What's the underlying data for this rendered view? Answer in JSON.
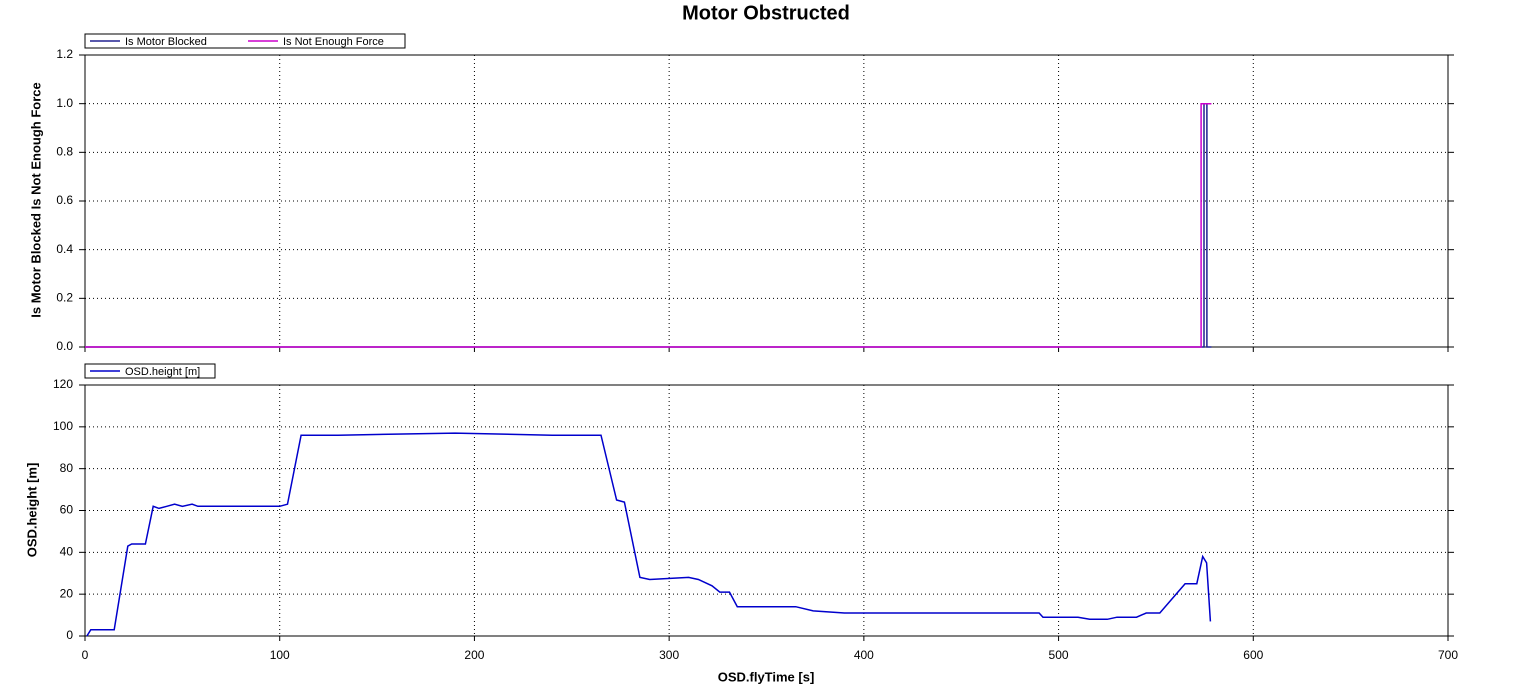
{
  "chart_data": [
    {
      "type": "line",
      "title": "Motor Obstructed",
      "ylabel": "Is Motor Blocked Is Not Enough Force",
      "ylim": [
        0,
        1.2
      ],
      "yticks": [
        {
          "value": 0,
          "label": "0.0"
        },
        {
          "value": 0.2,
          "label": "0.2"
        },
        {
          "value": 0.4,
          "label": "0.4"
        },
        {
          "value": 0.6,
          "label": "0.6"
        },
        {
          "value": 0.8,
          "label": "0.8"
        },
        {
          "value": 1,
          "label": "1.0"
        },
        {
          "value": 1.2,
          "label": "1.2"
        }
      ],
      "grid": true,
      "series": [
        {
          "name": "Is Motor Blocked",
          "color": "#202090",
          "x": [
            0,
            574.7,
            574.7,
            576.2,
            576.2,
            578.5
          ],
          "values": [
            0,
            0,
            1,
            1,
            0,
            0
          ]
        },
        {
          "name": "Is Not Enough Force",
          "color": "#cc00cc",
          "x": [
            0,
            573.2,
            573.2,
            578.5
          ],
          "values": [
            0,
            0,
            1,
            1
          ]
        }
      ]
    },
    {
      "type": "line",
      "xlabel": "OSD.flyTime [s]",
      "ylabel": "OSD.height [m]",
      "xlim": [
        0,
        700
      ],
      "xticks": [
        0,
        100,
        200,
        300,
        400,
        500,
        600,
        700
      ],
      "ylim": [
        0,
        120
      ],
      "yticks": [
        0,
        20,
        40,
        60,
        80,
        100,
        120
      ],
      "grid": true,
      "series": [
        {
          "name": "OSD.height [m]",
          "color": "#0000cc",
          "x": [
            1,
            3,
            15,
            22,
            24,
            31,
            35,
            38,
            42,
            46,
            50,
            55,
            58,
            65,
            90,
            100,
            104,
            111,
            130,
            190,
            240,
            265,
            273,
            277,
            285,
            290,
            310,
            315,
            322,
            326,
            331,
            335,
            365,
            374,
            390,
            490,
            492,
            510,
            516,
            525,
            530,
            540,
            545,
            552,
            565,
            571,
            574,
            576,
            578
          ],
          "values": [
            0,
            3,
            3,
            43,
            44,
            44,
            62,
            61,
            62,
            63,
            62,
            63,
            62,
            62,
            62,
            62,
            63,
            96,
            96,
            97,
            96,
            96,
            65,
            64,
            28,
            27,
            28,
            27,
            24,
            21,
            21,
            14,
            14,
            12,
            11,
            11,
            9,
            9,
            8,
            8,
            9,
            9,
            11,
            11,
            25,
            25,
            38,
            35,
            7
          ]
        }
      ]
    }
  ]
}
